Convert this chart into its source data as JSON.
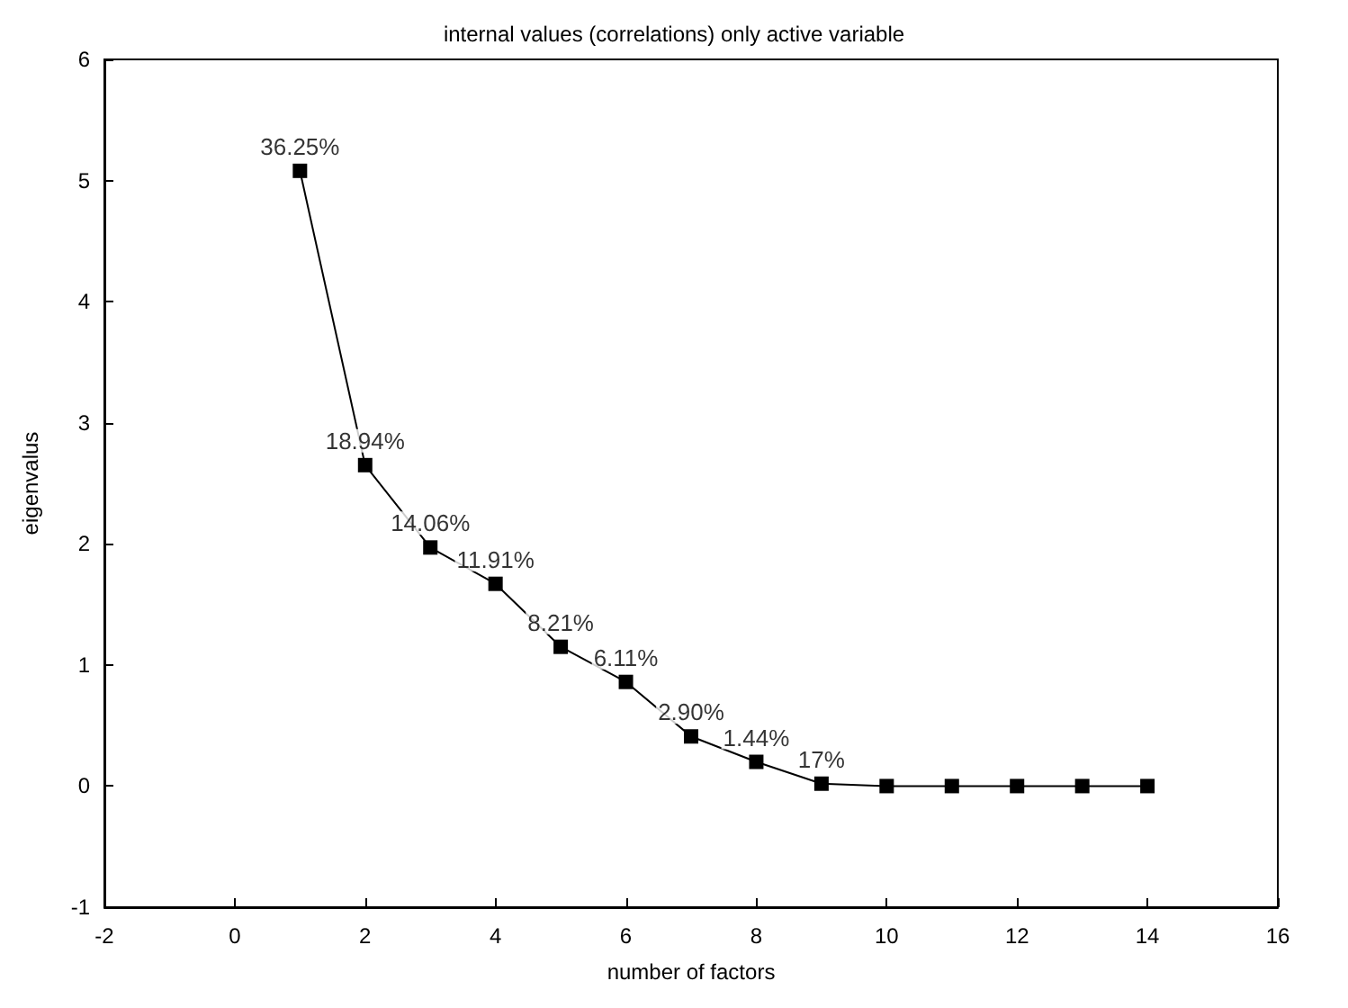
{
  "chart_data": {
    "type": "line",
    "title": "internal values (correlations) only active variable",
    "xlabel": "number of factors",
    "ylabel": "eigenvalus",
    "x": [
      1,
      2,
      3,
      4,
      5,
      6,
      7,
      8,
      9,
      10,
      11,
      12,
      13,
      14
    ],
    "series": [
      {
        "color": "#000000",
        "values": [
          5.08,
          2.65,
          1.97,
          1.67,
          1.15,
          0.86,
          0.41,
          0.2,
          0.02,
          0,
          0,
          0,
          0,
          0
        ]
      }
    ],
    "annotations": [
      {
        "text": "36.25%",
        "x": 1,
        "y": 5.08
      },
      {
        "text": "18.94%",
        "x": 2,
        "y": 2.65
      },
      {
        "text": "14.06%",
        "x": 3,
        "y": 1.97
      },
      {
        "text": "11.91%",
        "x": 4,
        "y": 1.67
      },
      {
        "text": "8.21%",
        "x": 5,
        "y": 1.15
      },
      {
        "text": "6.11%",
        "x": 6,
        "y": 0.86
      },
      {
        "text": "2.90%",
        "x": 7,
        "y": 0.41
      },
      {
        "text": "1.44%",
        "x": 8,
        "y": 0.2
      },
      {
        "text": "17%",
        "x": 9,
        "y": 0.02
      }
    ],
    "xlim": [
      -2,
      16
    ],
    "xticks": [
      -2,
      0,
      2,
      4,
      6,
      8,
      10,
      12,
      14,
      16
    ],
    "ylim": [
      -1,
      6
    ],
    "yticks": [
      -1,
      0,
      1,
      2,
      3,
      4,
      5,
      6
    ],
    "marker": "square",
    "line_style": "solid"
  }
}
